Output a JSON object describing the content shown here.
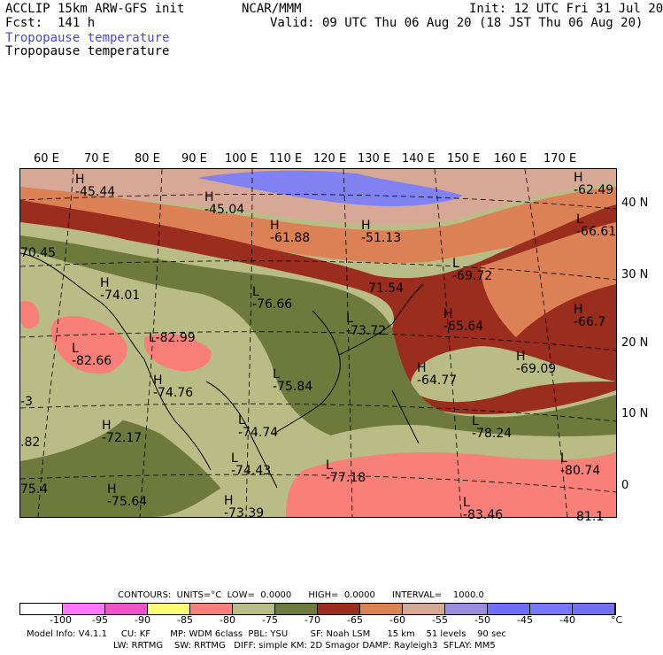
{
  "header": {
    "model": "ACCLIP 15km ARW-GFS init",
    "org": "NCAR/MMM",
    "init": "Init: 12 UTC Fri 31 Jul 20",
    "fcst": "Fcst:  141 h",
    "valid": "Valid: 09 UTC Thu 06 Aug 20 (18 JST Thu 06 Aug 20)",
    "field_line_1": "Tropopause temperature",
    "field_line_2": "Tropopause temperature"
  },
  "longitude_labels": [
    "60 E",
    "70 E",
    "80 E",
    "90 E",
    "100 E",
    "110 E",
    "120 E",
    "130 E",
    "140 E",
    "150 E",
    "160 E",
    "170 E"
  ],
  "latitude_labels": [
    "40 N",
    "30 N",
    "20 N",
    "10 N",
    "0"
  ],
  "map_labels": [
    {
      "mark": "H",
      "value": "-45.44"
    },
    {
      "mark": "H",
      "value": "-45.04"
    },
    {
      "mark": "H",
      "value": "-61.88"
    },
    {
      "mark": "H",
      "value": "-51.13"
    },
    {
      "mark": "H",
      "value": "-62.49"
    },
    {
      "mark": "L",
      "value": "-66.61"
    },
    {
      "mark": "",
      "value": "70.45"
    },
    {
      "mark": "L",
      "value": "-69.72"
    },
    {
      "mark": "H",
      "value": "-74.01"
    },
    {
      "mark": "L",
      "value": "-76.66"
    },
    {
      "mark": "",
      "value": "71.54"
    },
    {
      "mark": "L",
      "value": "-73.72"
    },
    {
      "mark": "H",
      "value": "-65.64"
    },
    {
      "mark": "H",
      "value": "-66.7"
    },
    {
      "mark": "L",
      "value": "-82.66"
    },
    {
      "mark": "L",
      "value": "-82.99"
    },
    {
      "mark": "H",
      "value": "-64.77"
    },
    {
      "mark": "H",
      "value": "-69.09"
    },
    {
      "mark": "H",
      "value": "-74.76"
    },
    {
      "mark": "L",
      "value": "-75.84"
    },
    {
      "mark": "",
      "value": "-3"
    },
    {
      "mark": "L",
      "value": "-74.74"
    },
    {
      "mark": "H",
      "value": "-72.17"
    },
    {
      "mark": "L",
      "value": "-78.24"
    },
    {
      "mark": "",
      "value": ".82"
    },
    {
      "mark": "L",
      "value": "-74.43"
    },
    {
      "mark": "L",
      "value": "-77.18"
    },
    {
      "mark": "L",
      "value": "-80.74"
    },
    {
      "mark": "",
      "value": "75.4"
    },
    {
      "mark": "H",
      "value": "-75.64"
    },
    {
      "mark": "H",
      "value": "-73.39"
    },
    {
      "mark": "L",
      "value": "-83.46"
    },
    {
      "mark": "",
      "value": "81.1"
    }
  ],
  "contour_info": "CONTOURS:  UNITS=°C  LOW=  0.0000      HIGH=  0.0000      INTERVAL=    1000.0",
  "colorbar": {
    "colors": [
      "#ffffff",
      "#ff78ff",
      "#f050c8",
      "#ffff78",
      "#f88078",
      "#b9bc84",
      "#6e7a3c",
      "#9b2d1e",
      "#dc8055",
      "#d8a896",
      "#9b8cdc",
      "#6e6eff",
      "#7878ff",
      "#7070f0"
    ],
    "ticks": [
      "-100",
      "-95",
      "-90",
      "-85",
      "-80",
      "-75",
      "-70",
      "-65",
      "-60",
      "-55",
      "-50",
      "-45",
      "-40"
    ],
    "unit": "°C"
  },
  "footer": {
    "line1": "Model Info: V4.1.1     CU: KF       MP: WDM 6class  PBL: YSU        SF: Noah LSM      15 km    51 levels    90 sec",
    "line2": "LW: RRTMG    SW: RRTMG   DIFF: simple KM: 2D Smagor DAMP: Rayleigh3  SFLAY: MM5"
  }
}
